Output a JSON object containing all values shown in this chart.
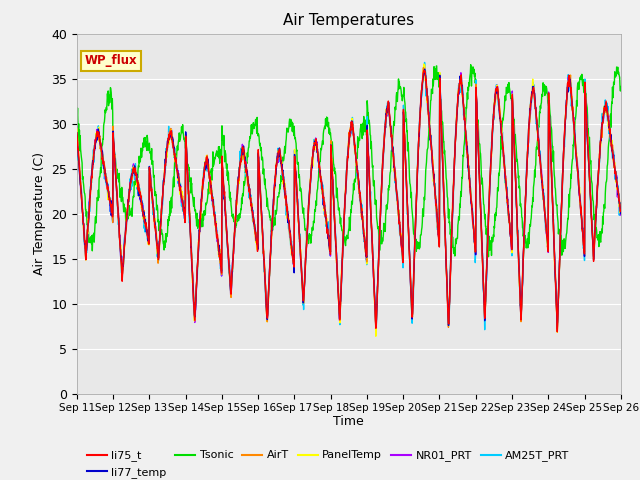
{
  "title": "Air Temperatures",
  "xlabel": "Time",
  "ylabel": "Air Temperature (C)",
  "ylim": [
    0,
    40
  ],
  "x_tick_labels": [
    "Sep 11",
    "Sep 12",
    "Sep 13",
    "Sep 14",
    "Sep 15",
    "Sep 16",
    "Sep 17",
    "Sep 18",
    "Sep 19",
    "Sep 20",
    "Sep 21",
    "Sep 22",
    "Sep 23",
    "Sep 24",
    "Sep 25",
    "Sep 26"
  ],
  "series_colors": {
    "li75_t": "#ff0000",
    "li77_temp": "#0000cc",
    "Tsonic": "#00dd00",
    "AirT": "#ff8800",
    "PanelTemp": "#ffff00",
    "NR01_PRT": "#aa00ff",
    "AM25T_PRT": "#00ccff"
  },
  "annotation_text": "WP_flux",
  "annotation_color": "#cc0000",
  "annotation_bg": "#ffffcc",
  "annotation_border": "#ccaa00",
  "plot_bg": "#e8e8e8",
  "fig_bg": "#f0f0f0",
  "grid_color": "#ffffff",
  "n_days": 15,
  "seed": 12345
}
